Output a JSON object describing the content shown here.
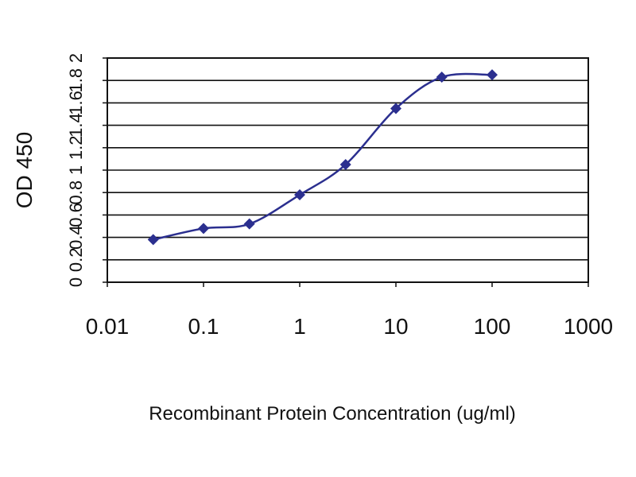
{
  "chart_data": {
    "type": "line",
    "xlabel": "Recombinant Protein Concentration (ug/ml)",
    "ylabel": "OD 450",
    "xscale": "log",
    "xlim": [
      0.01,
      1000
    ],
    "ylim": [
      0,
      2
    ],
    "xticks": [
      "0.01",
      "0.1",
      "1",
      "10",
      "100",
      "1000"
    ],
    "yticks": [
      "0",
      "0.2",
      "0.4",
      "0.6",
      "0.8",
      "1",
      "1.2",
      "1.4",
      "1.6",
      "1.8",
      "2"
    ],
    "grid": "horizontal",
    "series": [
      {
        "color": "#2b2f8f",
        "x": [
          0.03,
          0.1,
          0.3,
          1,
          3,
          10,
          30,
          100
        ],
        "y": [
          0.38,
          0.48,
          0.52,
          0.78,
          1.05,
          1.55,
          1.83,
          1.85
        ]
      }
    ]
  }
}
